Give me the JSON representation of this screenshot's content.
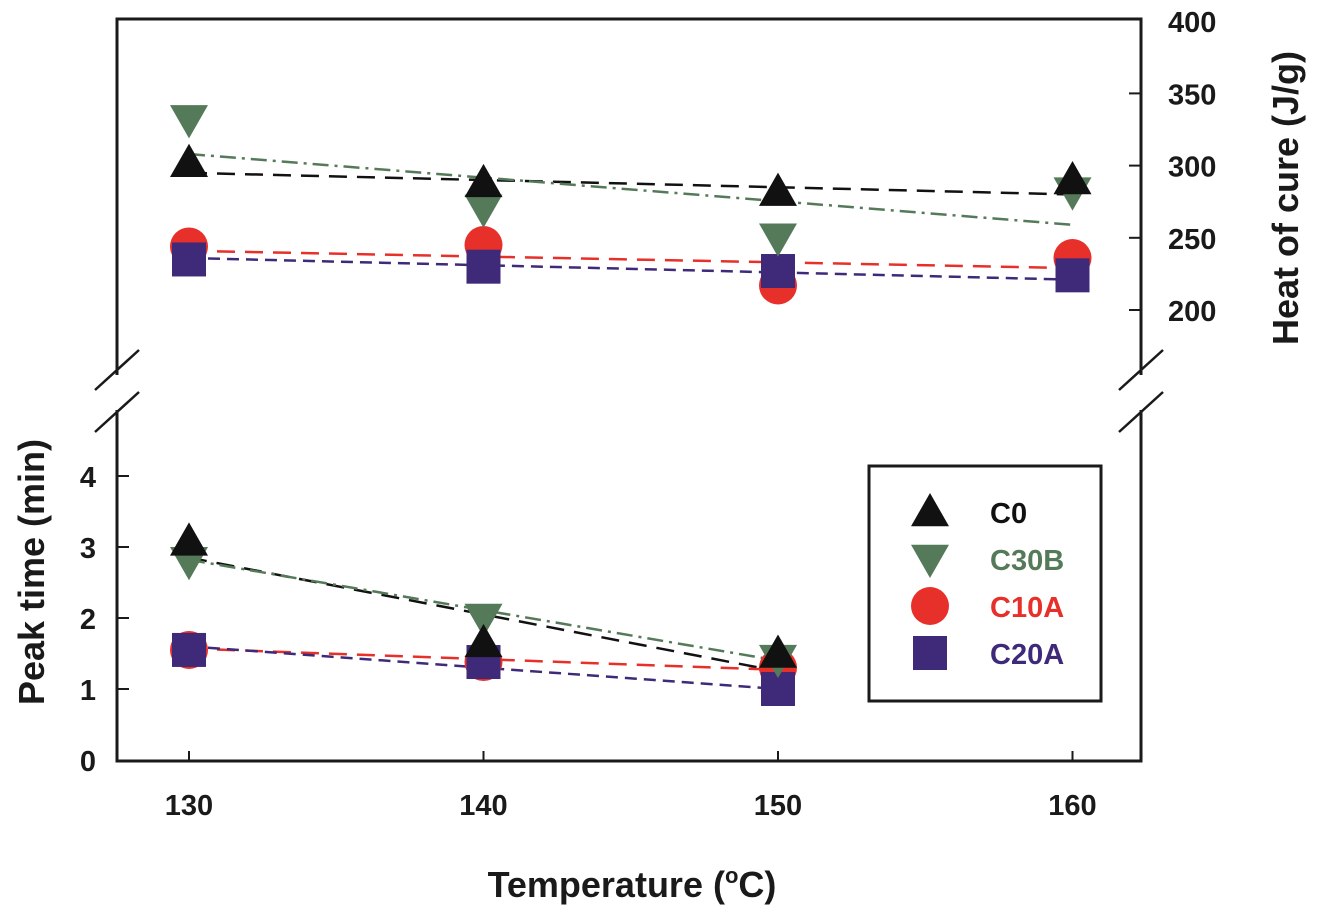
{
  "chart_data": {
    "type": "line",
    "title": "",
    "xlabel": "Temperature (°C)",
    "xlabel_parts": {
      "main": "Temperature (",
      "sup": "o",
      "unit": "C)"
    },
    "x_ticks": [
      130,
      140,
      150,
      160
    ],
    "xlim": [
      128,
      163
    ],
    "panels": {
      "heat_of_cure": {
        "ylabel": "Heat of cure (J/g)",
        "axis_side": "right",
        "ylim": [
          175,
          400
        ],
        "y_ticks": [
          200,
          250,
          300,
          350,
          400
        ]
      },
      "peak_time": {
        "ylabel": "Peak time (min)",
        "axis_side": "left",
        "ylim": [
          0,
          4.9
        ],
        "y_ticks": [
          0,
          1,
          2,
          3,
          4
        ]
      }
    },
    "axis_break": true,
    "series": [
      {
        "name": "C0",
        "marker": "triangle-up",
        "color": "#111111",
        "line_style": "long-dash",
        "heat_of_cure": {
          "x": [
            130,
            140,
            150,
            160
          ],
          "y": [
            302,
            288,
            282,
            290
          ],
          "fit": [
            295,
            280
          ]
        },
        "peak_time": {
          "x": [
            130,
            140,
            150
          ],
          "y": [
            3.08,
            1.65,
            1.5
          ],
          "fit": [
            2.85,
            1.25
          ]
        }
      },
      {
        "name": "C30B",
        "marker": "triangle-down",
        "color": "#557a59",
        "line_style": "dash-dot",
        "heat_of_cure": {
          "x": [
            130,
            140,
            150,
            160
          ],
          "y": [
            332,
            270,
            250,
            282
          ],
          "fit": [
            308,
            259
          ]
        },
        "peak_time": {
          "x": [
            130,
            140,
            150
          ],
          "y": [
            2.8,
            2.0,
            1.42
          ],
          "fit": [
            2.82,
            1.4
          ]
        }
      },
      {
        "name": "C10A",
        "marker": "circle",
        "color": "#e8302a",
        "line_style": "long-dash",
        "heat_of_cure": {
          "x": [
            130,
            140,
            150,
            160
          ],
          "y": [
            244,
            245,
            217,
            236
          ],
          "fit": [
            241,
            229
          ]
        },
        "peak_time": {
          "x": [
            130,
            140,
            150
          ],
          "y": [
            1.55,
            1.38,
            1.3
          ],
          "fit": [
            1.57,
            1.27
          ]
        }
      },
      {
        "name": "C20A",
        "marker": "square",
        "color": "#3f2a7a",
        "line_style": "short-dash",
        "heat_of_cure": {
          "x": [
            130,
            140,
            150,
            160
          ],
          "y": [
            235,
            230,
            227,
            224
          ],
          "fit": [
            236,
            221
          ]
        },
        "peak_time": {
          "x": [
            130,
            140,
            150
          ],
          "y": [
            1.55,
            1.38,
            1.0
          ],
          "fit": [
            1.6,
            1.0
          ]
        }
      }
    ],
    "legend": {
      "placement": "lower-right",
      "entries": [
        "C0",
        "C30B",
        "C10A",
        "C20A"
      ]
    },
    "grid": false
  }
}
